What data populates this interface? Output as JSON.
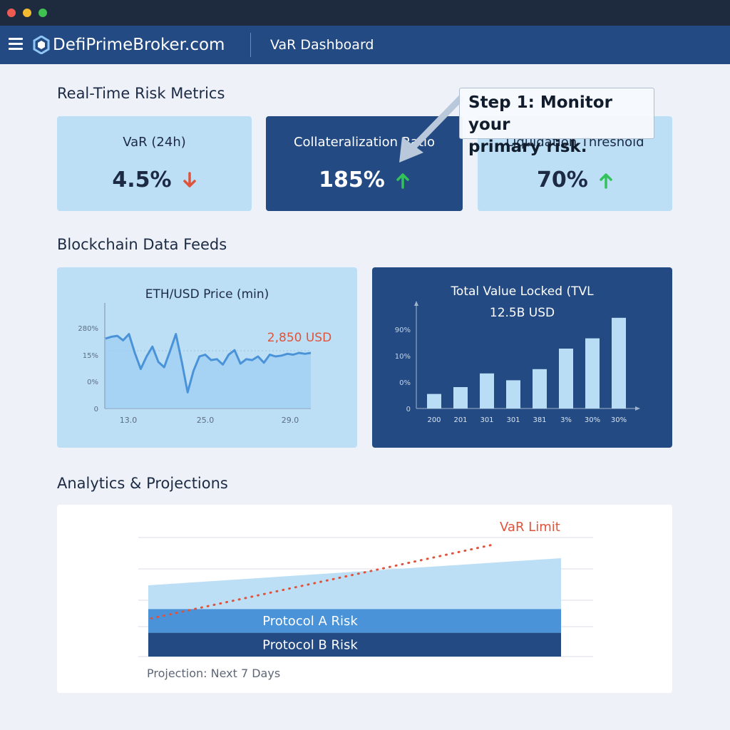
{
  "header": {
    "brand": "DefiPrimeBroker.com",
    "page_title": "VaR Dashboard"
  },
  "sections": {
    "metrics_heading": "Real-Time Risk Metrics",
    "feeds_heading": "Blockchain Data Feeds",
    "analytics_heading": "Analytics & Projections"
  },
  "metrics": [
    {
      "label": "VaR (24h)",
      "value": "4.5%",
      "trend": "down",
      "trend_color": "#e0533b"
    },
    {
      "label": "Collateralization Ratio",
      "value": "185%",
      "trend": "up",
      "trend_color": "#33c15a"
    },
    {
      "label": "Liquidation Threshold",
      "value": "70%",
      "trend": "up",
      "trend_color": "#33c15a"
    }
  ],
  "callout": {
    "line1": "Step 1: Monitor your",
    "line2": "primary risk."
  },
  "colors": {
    "accent_dark": "#234a82",
    "accent_light": "#bddff6",
    "line": "#4a93d9",
    "alert": "#e0533b"
  },
  "chart_data": [
    {
      "type": "line",
      "title": "ETH/USD Price (min)",
      "annotation": "2,850 USD",
      "y_tick_labels": [
        "0",
        "0%",
        "15%",
        "280%"
      ],
      "x_tick_labels": [
        "13.0",
        "25.0",
        "29.0"
      ],
      "grid": false,
      "series": [
        {
          "values": [
            0.78,
            0.8,
            0.81,
            0.76,
            0.83,
            0.62,
            0.44,
            0.58,
            0.69,
            0.52,
            0.46,
            0.64,
            0.83,
            0.52,
            0.18,
            0.42,
            0.58,
            0.6,
            0.54,
            0.55,
            0.49,
            0.6,
            0.65,
            0.5,
            0.55,
            0.54,
            0.58,
            0.51,
            0.6,
            0.58,
            0.59,
            0.61,
            0.6,
            0.62,
            0.61,
            0.62
          ]
        }
      ]
    },
    {
      "type": "bar",
      "title": "Total Value Locked (TVL",
      "subtitle": "12.5B USD",
      "y_tick_labels": [
        "0",
        "0%",
        "10%",
        "90%"
      ],
      "categories": [
        "200",
        "201",
        "301",
        "301",
        "381",
        "3%",
        "30%",
        "30%"
      ],
      "values": [
        0.17,
        0.25,
        0.41,
        0.33,
        0.46,
        0.7,
        0.82,
        1.06
      ],
      "grid": false
    },
    {
      "type": "area",
      "caption": "Projection: Next 7 Days",
      "layers": [
        {
          "name": "Protocol B Risk",
          "start": 0.28,
          "end": 0.28
        },
        {
          "name": "Protocol A Risk",
          "start": 0.56,
          "end": 0.56
        },
        {
          "name": "",
          "start": 0.84,
          "end": 1.16
        }
      ],
      "limit_line": {
        "label": "VaR Limit",
        "start": 0.45,
        "end": 1.32
      },
      "grid": true
    }
  ]
}
